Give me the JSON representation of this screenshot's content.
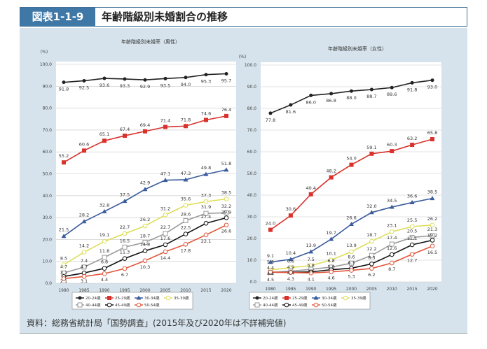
{
  "header": {
    "number": "図表1-1-9",
    "title": "年齢階級別未婚割合の推移"
  },
  "source": "資料：総務省統計局「国勢調査」(2015年及び2020年は不詳補完値)",
  "chart_data": [
    {
      "type": "line",
      "title": "年齢階級別未婚率（男性）",
      "ylabel": "(%)",
      "ylim": [
        0,
        100
      ],
      "yticks": [
        "0.0",
        "10.0",
        "20.0",
        "30.0",
        "40.0",
        "50.0",
        "60.0",
        "70.0",
        "80.0",
        "90.0",
        "100.0"
      ],
      "categories": [
        "1980",
        "1985",
        "1990",
        "1995",
        "2000",
        "2005",
        "2010",
        "2015",
        "2020"
      ],
      "grid": true,
      "legend": "bottom",
      "series": [
        {
          "name": "20-24歳",
          "color": "#222222",
          "values": [
            91.8,
            92.5,
            93.6,
            93.3,
            92.9,
            93.5,
            94.0,
            95.3,
            95.7
          ]
        },
        {
          "name": "25-29歳",
          "color": "#d9312b",
          "values": [
            55.2,
            60.6,
            65.1,
            67.4,
            69.4,
            71.4,
            71.8,
            74.6,
            76.4
          ]
        },
        {
          "name": "30-34歳",
          "color": "#3b5c9c",
          "values": [
            21.5,
            28.2,
            32.8,
            37.5,
            42.9,
            47.1,
            47.3,
            49.8,
            51.8
          ]
        },
        {
          "name": "35-39歳",
          "color": "#dede5a",
          "values": [
            8.5,
            14.2,
            19.1,
            22.7,
            26.2,
            31.2,
            35.6,
            37.3,
            38.5
          ]
        },
        {
          "name": "40-44歳",
          "color": "#9a9a9a",
          "values": [
            4.7,
            7.4,
            11.8,
            16.5,
            18.7,
            22.7,
            28.6,
            31.9,
            32.2
          ]
        },
        {
          "name": "45-49歳",
          "color": "#111111",
          "values": [
            3.1,
            4.7,
            6.8,
            11.3,
            14.8,
            17.6,
            22.5,
            27.4,
            29.9
          ]
        },
        {
          "name": "50-54歳",
          "color": "#e2553a",
          "values": [
            2.1,
            3.1,
            4.4,
            6.7,
            10.3,
            14.4,
            17.8,
            22.1,
            26.6
          ]
        }
      ]
    },
    {
      "type": "line",
      "title": "年齢階級別未婚率（女性）",
      "ylabel": "(%)",
      "ylim": [
        0,
        100
      ],
      "yticks": [
        "0.0",
        "10.0",
        "20.0",
        "30.0",
        "40.0",
        "50.0",
        "60.0",
        "70.0",
        "80.0",
        "90.0",
        "100.0"
      ],
      "categories": [
        "1980",
        "1985",
        "1990",
        "1995",
        "2000",
        "2005",
        "2010",
        "2015",
        "2020"
      ],
      "grid": true,
      "legend": "bottom",
      "series": [
        {
          "name": "20-24歳",
          "color": "#222222",
          "values": [
            77.8,
            81.6,
            86.0,
            86.8,
            88.0,
            88.7,
            89.6,
            91.8,
            93.0
          ]
        },
        {
          "name": "25-29歳",
          "color": "#d9312b",
          "values": [
            24.0,
            30.6,
            40.4,
            48.2,
            54.0,
            59.1,
            60.3,
            63.2,
            65.8
          ]
        },
        {
          "name": "30-34歳",
          "color": "#3b5c9c",
          "values": [
            9.1,
            10.4,
            13.9,
            19.7,
            26.6,
            32.0,
            34.5,
            36.6,
            38.5
          ]
        },
        {
          "name": "35-39歳",
          "color": "#dede5a",
          "values": [
            5.5,
            6.6,
            7.5,
            10.1,
            13.9,
            18.7,
            23.1,
            25.5,
            26.2
          ]
        },
        {
          "name": "40-44歳",
          "color": "#9a9a9a",
          "values": [
            4.4,
            4.9,
            5.8,
            6.8,
            8.6,
            12.2,
            17.4,
            20.5,
            21.3
          ]
        },
        {
          "name": "45-49歳",
          "color": "#111111",
          "values": [
            4.4,
            4.4,
            4.6,
            5.6,
            6.3,
            8.3,
            12.6,
            17.1,
            19.2
          ]
        },
        {
          "name": "50-54歳",
          "color": "#e2553a",
          "values": [
            4.5,
            4.3,
            4.1,
            4.6,
            5.3,
            6.2,
            8.7,
            12.7,
            16.5
          ]
        }
      ]
    }
  ]
}
